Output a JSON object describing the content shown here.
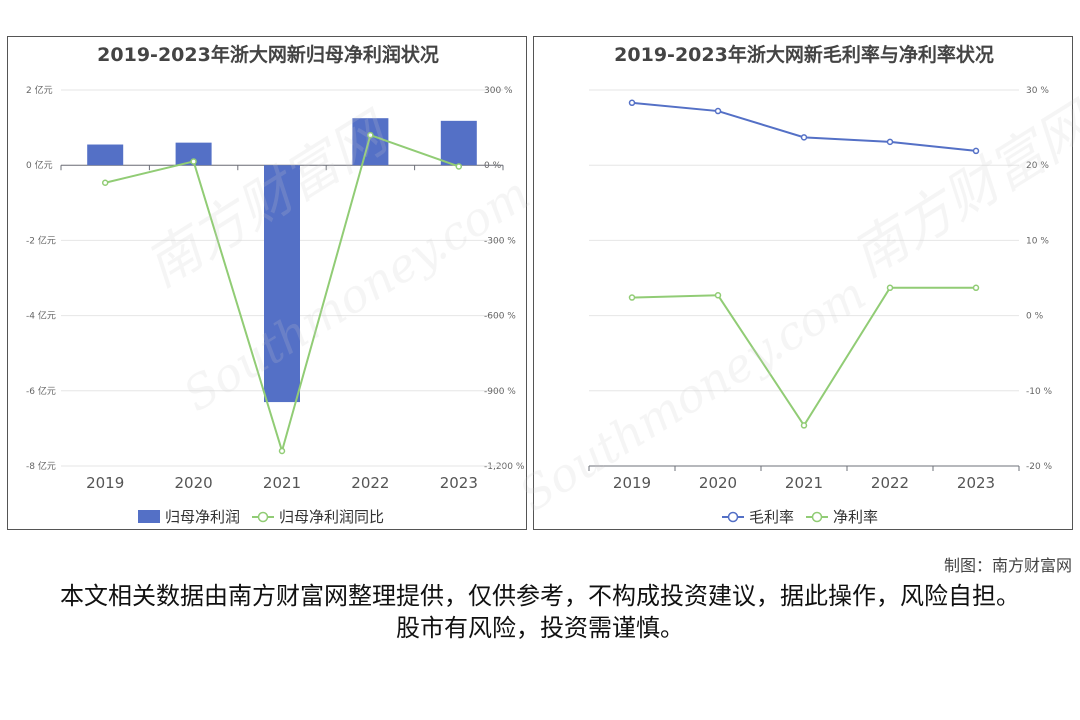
{
  "chart_data": [
    {
      "type": "bar",
      "title": "2019-2023年浙大网新归母净利润状况",
      "categories": [
        "2019",
        "2020",
        "2021",
        "2022",
        "2023"
      ],
      "series": [
        {
          "name": "归母净利润",
          "kind": "bar",
          "axis": "left",
          "color": "#5470c6",
          "values": [
            0.55,
            0.6,
            -6.3,
            1.25,
            1.18
          ]
        },
        {
          "name": "归母净利润同比",
          "kind": "line",
          "axis": "right",
          "color": "#91cc75",
          "values": [
            -70,
            15,
            -1140,
            120,
            -5
          ]
        }
      ],
      "y_left": {
        "ylim": [
          -8,
          2
        ],
        "ticks": [
          2,
          0,
          -2,
          -4,
          -6,
          -8
        ],
        "tick_labels": [
          "2 亿元",
          "0 亿元",
          "-2 亿元",
          "-4 亿元",
          "-6 亿元",
          "-8 亿元"
        ]
      },
      "y_right": {
        "ylim": [
          -1200,
          300
        ],
        "ticks": [
          300,
          0,
          -300,
          -600,
          -900,
          -1200
        ],
        "tick_labels": [
          "300 %",
          "0 %",
          "-300 %",
          "-600 %",
          "-900 %",
          "-1,200 %"
        ]
      },
      "grid": true,
      "legend": "bottom"
    },
    {
      "type": "line",
      "title": "2019-2023年浙大网新毛利率与净利率状况",
      "categories": [
        "2019",
        "2020",
        "2021",
        "2022",
        "2023"
      ],
      "series": [
        {
          "name": "毛利率",
          "color": "#5470c6",
          "values": [
            28.3,
            27.2,
            23.7,
            23.1,
            21.9
          ]
        },
        {
          "name": "净利率",
          "color": "#91cc75",
          "values": [
            2.4,
            2.7,
            -14.6,
            3.7,
            3.7
          ]
        }
      ],
      "y_right": {
        "ylim": [
          -20,
          30
        ],
        "ticks": [
          30,
          20,
          10,
          0,
          -10,
          -20
        ],
        "tick_labels": [
          "30 %",
          "20 %",
          "10 %",
          "0 %",
          "-10 %",
          "-20 %"
        ]
      },
      "grid": true,
      "legend": "bottom"
    }
  ],
  "watermark": {
    "text_cn": "南方财富网",
    "text_en": "Southmoney.com"
  },
  "footer": {
    "credit": "制图：南方财富网",
    "disclaimer": "本文相关数据由南方财富网整理提供，仅供参考，不构成投资建议，据此操作，风险自担。股市有风险，投资需谨慎。"
  }
}
